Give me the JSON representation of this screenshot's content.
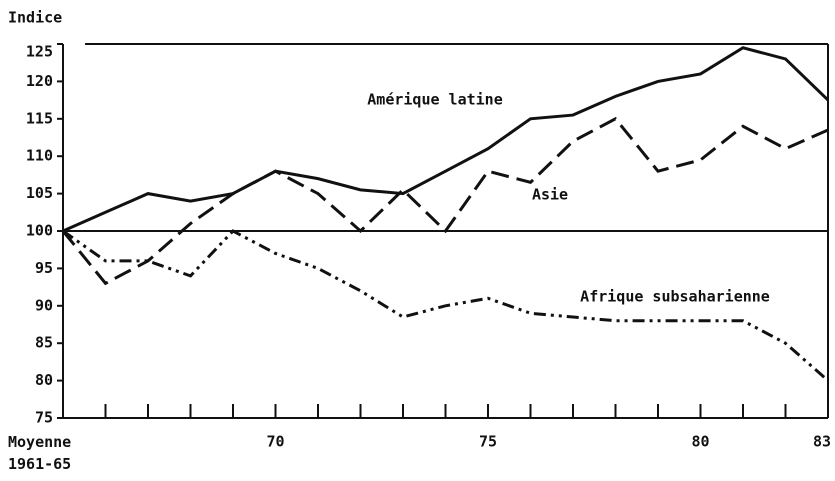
{
  "chart_data": {
    "type": "line",
    "y_label": "Indice",
    "categories": [
      "Moyenne 1961-65",
      null,
      null,
      null,
      null,
      "70",
      null,
      null,
      null,
      null,
      "75",
      null,
      null,
      null,
      null,
      "80",
      null,
      null,
      "83"
    ],
    "series": [
      {
        "name": "Amérique latine",
        "color": "#111",
        "dash": "solid",
        "values": [
          100,
          102.5,
          105,
          104,
          105,
          108,
          107,
          105.5,
          105,
          108,
          111,
          115,
          115.5,
          118,
          120,
          121,
          124.5,
          123,
          117.5
        ]
      },
      {
        "name": "Asie",
        "color": "#111",
        "dash": "dashed",
        "values": [
          100,
          93,
          96,
          101,
          105,
          108,
          105,
          100,
          105.5,
          100,
          108,
          106.5,
          112,
          115,
          108,
          109.5,
          114,
          111,
          113.5
        ]
      },
      {
        "name": "Afrique subsaharienne",
        "color": "#111",
        "dash": "dashdot",
        "values": [
          100,
          96,
          96,
          94,
          100,
          97,
          95,
          92,
          88.5,
          90,
          91,
          89,
          88.5,
          88,
          88,
          88,
          88,
          85,
          80
        ]
      }
    ],
    "ylim": [
      75,
      125
    ],
    "yticks": [
      75,
      80,
      85,
      90,
      95,
      100,
      105,
      110,
      115,
      120,
      125
    ],
    "reference_line": 100
  }
}
